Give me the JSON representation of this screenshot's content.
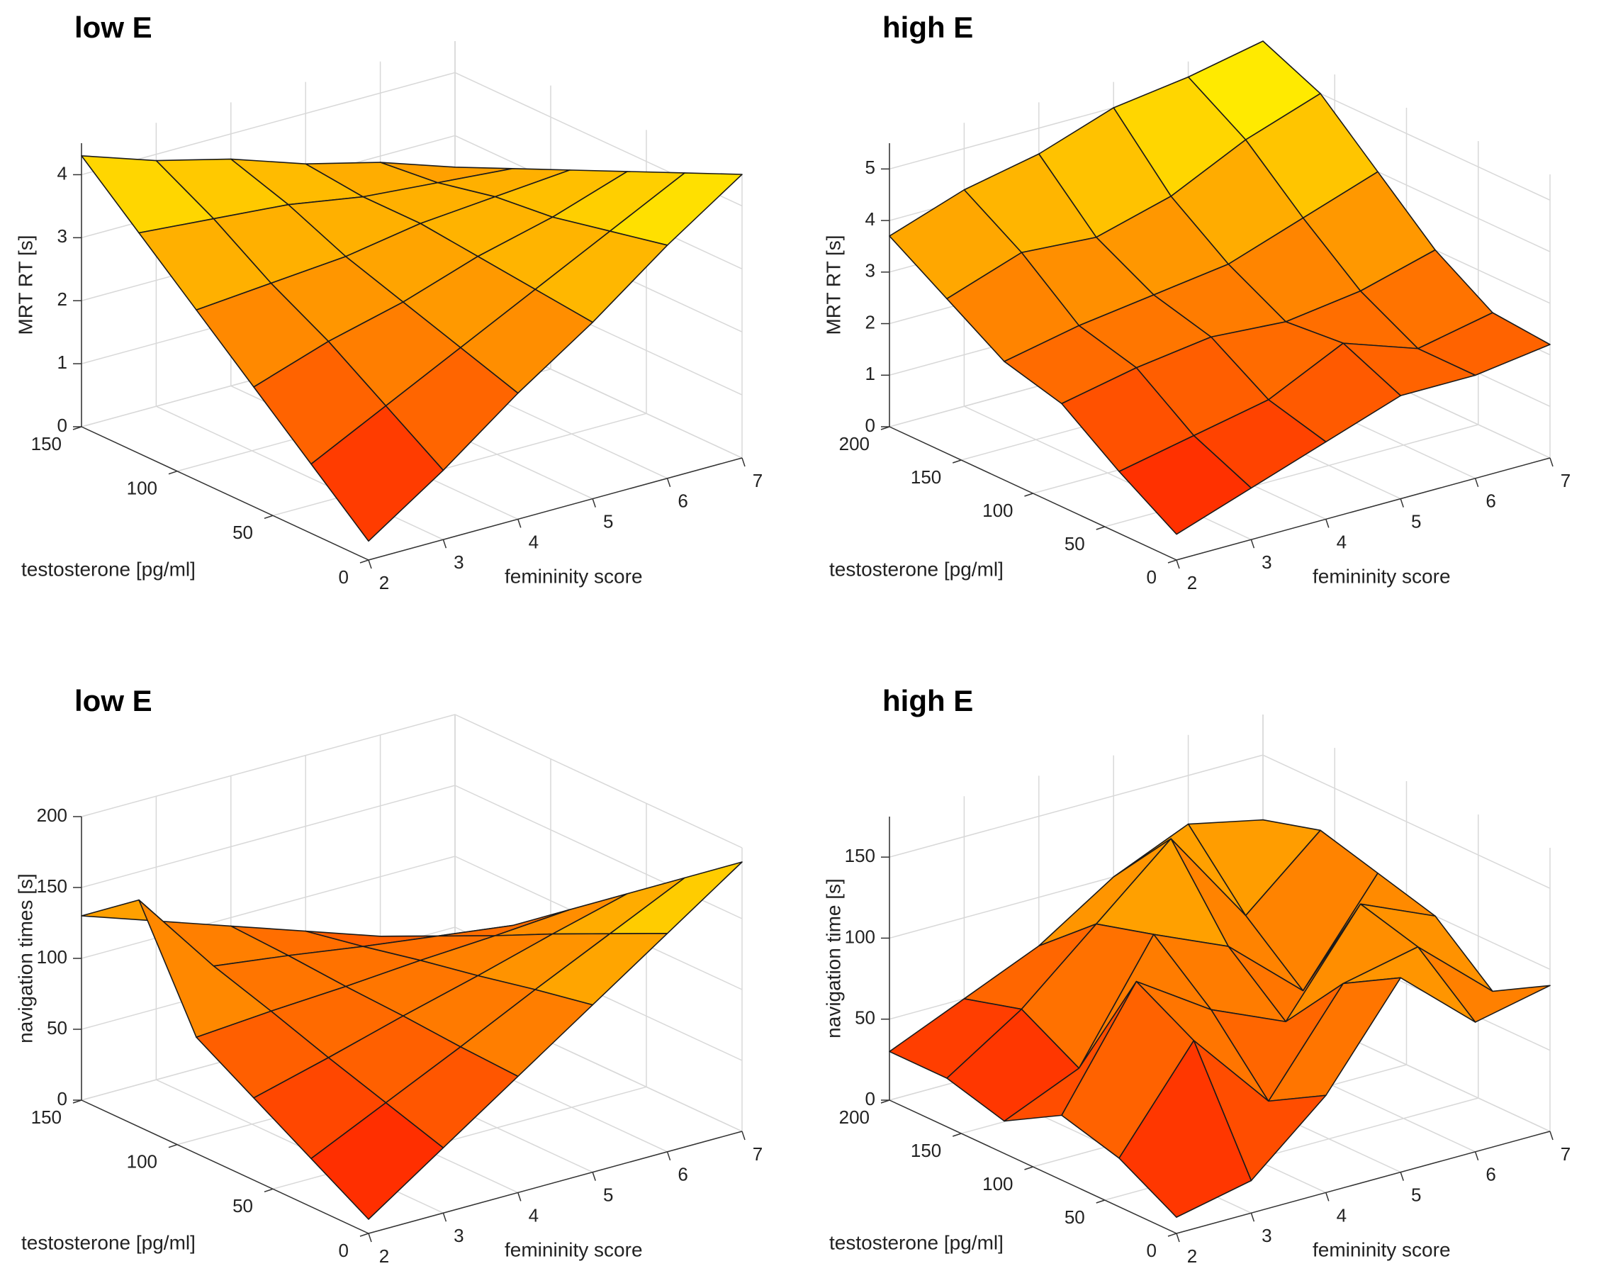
{
  "chart_data": [
    {
      "type": "surface",
      "title": "low E",
      "x_label": "femininity score",
      "y_label": "testosterone [pg/ml]",
      "z_label": "MRT RT [s]",
      "x": [
        2,
        3,
        4,
        5,
        6,
        7
      ],
      "y": [
        0,
        30,
        60,
        90,
        120,
        150
      ],
      "z": [
        [
          0.3,
          1.1,
          2.0,
          2.8,
          3.7,
          4.5
        ],
        [
          1.1,
          1.7,
          2.3,
          2.9,
          3.5,
          4.1
        ],
        [
          1.9,
          2.3,
          2.6,
          3.0,
          3.3,
          3.7
        ],
        [
          2.7,
          2.8,
          2.9,
          3.1,
          3.2,
          3.3
        ],
        [
          3.5,
          3.4,
          3.3,
          3.1,
          3.0,
          2.9
        ],
        [
          4.3,
          3.9,
          3.6,
          3.2,
          2.9,
          2.5
        ]
      ],
      "xlim": [
        2,
        7
      ],
      "ylim": [
        0,
        150
      ],
      "zlim": [
        0,
        4.5
      ],
      "xticks": [
        2,
        3,
        4,
        5,
        6,
        7
      ],
      "yticks": [
        0,
        50,
        100,
        150
      ],
      "zticks": [
        0,
        1,
        2,
        3,
        4
      ],
      "colormap": [
        "#ff0000",
        "#ffff00"
      ],
      "grid": true
    },
    {
      "type": "surface",
      "title": "high E",
      "x_label": "femininity score",
      "y_label": "testosterone [pg/ml]",
      "z_label": "MRT RT [s]",
      "x": [
        2,
        3,
        4,
        5,
        6,
        7
      ],
      "y": [
        0,
        40,
        80,
        120,
        160,
        200
      ],
      "z": [
        [
          0.5,
          1.0,
          1.5,
          2.0,
          2.0,
          2.2
        ],
        [
          1.2,
          1.5,
          1.8,
          2.5,
          2.0,
          2.3
        ],
        [
          2.0,
          2.3,
          2.5,
          2.4,
          2.6,
          3.0
        ],
        [
          2.3,
          2.6,
          2.8,
          3.0,
          3.5,
          4.0
        ],
        [
          3.0,
          3.5,
          3.4,
          3.8,
          4.5,
          5.0
        ],
        [
          3.7,
          4.2,
          4.5,
          5.0,
          5.2,
          5.5
        ]
      ],
      "xlim": [
        2,
        7
      ],
      "ylim": [
        0,
        200
      ],
      "zlim": [
        0,
        5.5
      ],
      "xticks": [
        2,
        3,
        4,
        5,
        6,
        7
      ],
      "yticks": [
        0,
        50,
        100,
        150,
        200
      ],
      "zticks": [
        0,
        1,
        2,
        3,
        4,
        5
      ],
      "colormap": [
        "#ff0000",
        "#ffff00"
      ],
      "grid": true
    },
    {
      "type": "surface",
      "title": "low E",
      "x_label": "femininity score",
      "y_label": "testosterone [pg/ml]",
      "z_label": "navigation times [s]",
      "x": [
        2,
        3,
        4,
        5,
        6,
        7
      ],
      "y": [
        0,
        30,
        60,
        90,
        120,
        150
      ],
      "z": [
        [
          10,
          46,
          82,
          118,
          154,
          190
        ],
        [
          34,
          59,
          84,
          110,
          135,
          160
        ],
        [
          58,
          72,
          87,
          101,
          116,
          130
        ],
        [
          82,
          86,
          89,
          93,
          96,
          100
        ],
        [
          160,
          99,
          92,
          84,
          77,
          70
        ],
        [
          130,
          112,
          94,
          76,
          58,
          40
        ]
      ],
      "xlim": [
        2,
        7
      ],
      "ylim": [
        0,
        150
      ],
      "zlim": [
        0,
        200
      ],
      "xticks": [
        2,
        3,
        4,
        5,
        6,
        7
      ],
      "yticks": [
        0,
        50,
        100,
        150
      ],
      "zticks": [
        0,
        50,
        100,
        150,
        200
      ],
      "colormap": [
        "#ff0000",
        "#ffff00"
      ],
      "grid": true
    },
    {
      "type": "surface",
      "title": "high E",
      "x_label": "femininity score",
      "y_label": "testosterone [pg/ml]",
      "z_label": "navigation time [s]",
      "x": [
        2,
        3,
        4,
        5,
        6,
        7
      ],
      "y": [
        0,
        40,
        80,
        120,
        160,
        200
      ],
      "z": [
        [
          10,
          20,
          60,
          120,
          80,
          90
        ],
        [
          30,
          90,
          40,
          100,
          110,
          70
        ],
        [
          40,
          110,
          80,
          60,
          120,
          100
        ],
        [
          20,
          40,
          110,
          90,
          50,
          110
        ],
        [
          30,
          60,
          100,
          140,
          80,
          120
        ],
        [
          30,
          50,
          70,
          100,
          120,
          110
        ]
      ],
      "xlim": [
        2,
        7
      ],
      "ylim": [
        0,
        200
      ],
      "zlim": [
        0,
        175
      ],
      "xticks": [
        2,
        3,
        4,
        5,
        6,
        7
      ],
      "yticks": [
        0,
        50,
        100,
        150,
        200
      ],
      "zticks": [
        0,
        50,
        100,
        150
      ],
      "colormap": [
        "#ff0000",
        "#ffff00"
      ],
      "grid": true
    }
  ]
}
